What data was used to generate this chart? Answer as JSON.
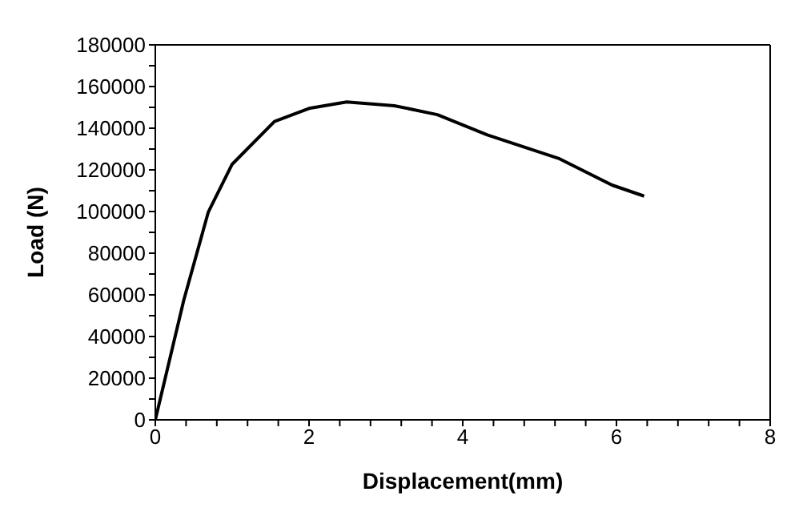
{
  "chart_data": {
    "type": "line",
    "xlabel": "Displacement(mm)",
    "ylabel": "Load  (N)",
    "series": [
      {
        "color": "#000000",
        "x": [
          0,
          0.37,
          0.69,
          1.0,
          1.55,
          2.0,
          2.49,
          3.11,
          3.67,
          4.32,
          5.26,
          5.95,
          6.36
        ],
        "values": [
          0,
          57400,
          99800,
          122700,
          143200,
          149500,
          152600,
          150800,
          146500,
          136800,
          125300,
          112600,
          107400
        ]
      }
    ],
    "xlim": [
      0,
      8
    ],
    "xticks": [
      0,
      {
        "value": 0.4,
        "label": null
      },
      {
        "value": 0.8,
        "label": null
      },
      {
        "value": 1.2,
        "label": null
      },
      {
        "value": 1.6,
        "label": null
      },
      2,
      {
        "value": 2.4,
        "label": null
      },
      {
        "value": 2.8,
        "label": null
      },
      {
        "value": 3.2,
        "label": null
      },
      {
        "value": 3.6,
        "label": null
      },
      4,
      {
        "value": 4.4,
        "label": null
      },
      {
        "value": 4.8,
        "label": null
      },
      {
        "value": 5.2,
        "label": null
      },
      {
        "value": 5.6,
        "label": null
      },
      6,
      {
        "value": 6.4,
        "label": null
      },
      {
        "value": 6.8,
        "label": null
      },
      {
        "value": 7.2,
        "label": null
      },
      {
        "value": 7.6,
        "label": null
      },
      8
    ],
    "ylim": [
      0,
      180000
    ],
    "yticks": [
      0,
      {
        "value": 10000,
        "label": null
      },
      20000,
      {
        "value": 30000,
        "label": null
      },
      40000,
      {
        "value": 50000,
        "label": null
      },
      60000,
      {
        "value": 70000,
        "label": null
      },
      80000,
      {
        "value": 90000,
        "label": null
      },
      100000,
      {
        "value": 110000,
        "label": null
      },
      120000,
      {
        "value": 130000,
        "label": null
      },
      140000,
      {
        "value": 150000,
        "label": null
      },
      160000,
      {
        "value": 170000,
        "label": null
      },
      180000
    ],
    "marker": "none",
    "line_style": "solid"
  }
}
